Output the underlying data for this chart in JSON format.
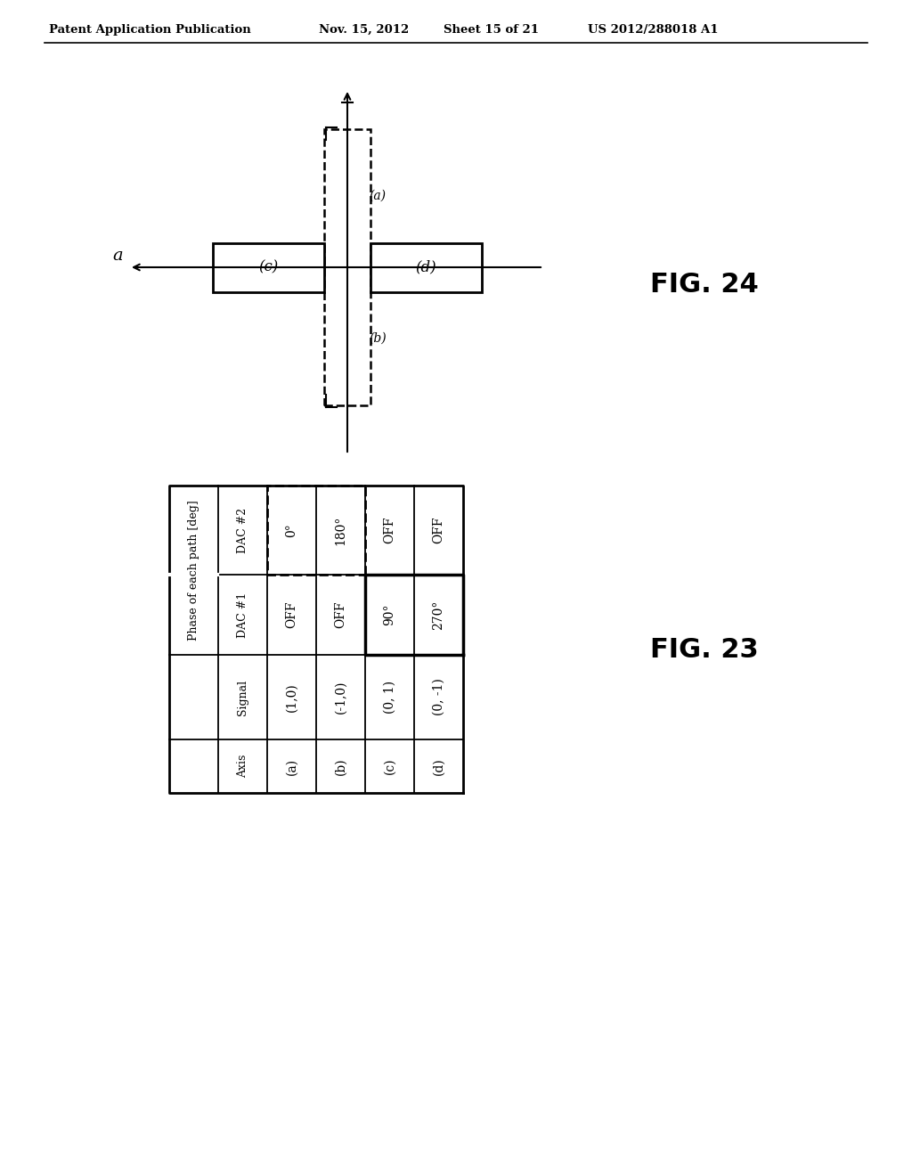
{
  "bg_color": "#ffffff",
  "header_text": "Patent Application Publication",
  "header_date": "Nov. 15, 2012",
  "header_sheet": "Sheet 15 of 21",
  "header_patent": "US 2012/288018 A1",
  "fig24_label": "FIG. 24",
  "fig23_label": "FIG. 23"
}
